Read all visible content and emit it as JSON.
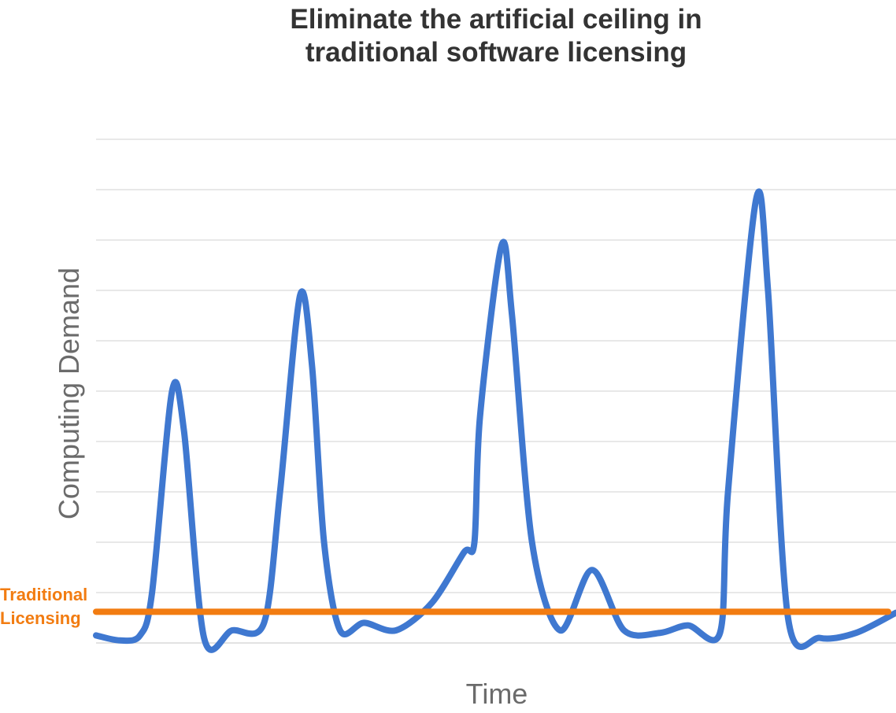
{
  "chart_data": {
    "type": "line",
    "title_lines": [
      "Eliminate the artificial ceiling in",
      "traditional software licensing"
    ],
    "xlabel": "Time",
    "ylabel": "Computing Demand",
    "ylim": [
      0,
      10
    ],
    "grid": true,
    "series": [
      {
        "color": "#3f78d0",
        "points": [
          [
            0,
            0.15
          ],
          [
            3,
            0.05
          ],
          [
            5.5,
            0.15
          ],
          [
            7,
            1
          ],
          [
            9.5,
            5.0
          ],
          [
            11,
            4.2
          ],
          [
            13.5,
            0.1
          ],
          [
            17,
            0.25
          ],
          [
            21,
            0.4
          ],
          [
            23,
            3.0
          ],
          [
            25.5,
            6.9
          ],
          [
            27,
            5.5
          ],
          [
            28.5,
            2.0
          ],
          [
            30.5,
            0.25
          ],
          [
            33.5,
            0.4
          ],
          [
            37.5,
            0.25
          ],
          [
            42,
            0.8
          ],
          [
            46,
            1.8
          ],
          [
            47.3,
            2.0
          ],
          [
            48,
            4.5
          ],
          [
            50.7,
            7.9
          ],
          [
            52,
            6.5
          ],
          [
            54.5,
            2.0
          ],
          [
            58,
            0.25
          ],
          [
            62,
            1.45
          ],
          [
            66,
            0.25
          ],
          [
            70.5,
            0.2
          ],
          [
            74,
            0.35
          ],
          [
            78,
            0.2
          ],
          [
            79,
            3.0
          ],
          [
            82.5,
            8.8
          ],
          [
            84,
            7.0
          ],
          [
            86.5,
            0.5
          ],
          [
            90.5,
            0.1
          ],
          [
            95,
            0.2
          ],
          [
            100,
            0.6
          ]
        ]
      },
      {
        "name": "Traditional Licensing",
        "name_lines": [
          "Traditional",
          "Licensing"
        ],
        "color": "#f27c11",
        "points": [
          [
            0,
            0.62
          ],
          [
            100,
            0.62
          ]
        ]
      }
    ]
  }
}
